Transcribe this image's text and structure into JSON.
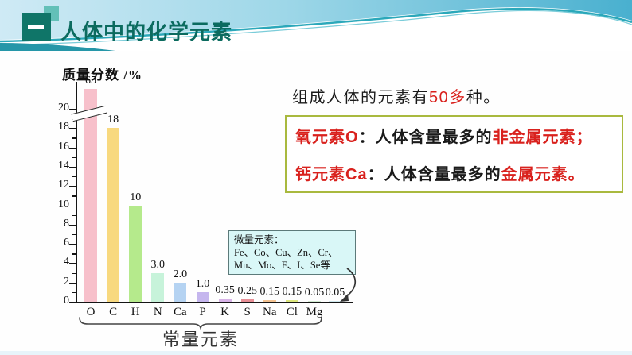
{
  "header": {
    "title": "人体中的化学元素"
  },
  "intro": {
    "pre": "组成人体的元素有",
    "highlight": "50多",
    "post": "种。"
  },
  "info_box": {
    "line1": {
      "label": "氧元素O",
      "colon": "：",
      "mid": "人体含量最多的",
      "highlight": "非金属元素；"
    },
    "line2": {
      "label": "钙元素Ca",
      "colon": "：",
      "mid": "人体含量最多的",
      "highlight": "金属元素。"
    }
  },
  "trace_box": {
    "title": "微量元素：",
    "line1": "Fe、Co、Cu、Zn、Cr、",
    "line2": "Mn、Mo、F、I、Se等"
  },
  "chart_data": {
    "type": "bar",
    "title": "",
    "ylabel": "质量分数 /%",
    "xlabel": "",
    "categories": [
      "O",
      "C",
      "H",
      "N",
      "Ca",
      "P",
      "K",
      "S",
      "Na",
      "Cl",
      "Mg",
      ""
    ],
    "values": [
      65,
      18,
      10,
      3.0,
      2.0,
      1.0,
      0.35,
      0.25,
      0.15,
      0.15,
      0.05,
      0.05
    ],
    "value_labels": [
      "65",
      "18",
      "10",
      "3.0",
      "2.0",
      "1.0",
      "0.35",
      "0.25",
      "0.15",
      "0.15",
      "0.05",
      "0.05"
    ],
    "bar_colors": [
      "#f7c0cb",
      "#f8d97f",
      "#b5ea8c",
      "#c7f3da",
      "#b5d3f2",
      "#c5b6ee",
      "#d8b3e8",
      "#e88f96",
      "#f3c291",
      "#dce67c",
      "#d2ecd2",
      "#cfe8ee"
    ],
    "yticks": [
      0,
      2,
      4,
      6,
      8,
      10,
      12,
      14,
      16,
      18,
      20
    ],
    "ylim": [
      0,
      21
    ],
    "axis_break": true,
    "axis_break_note": "O bar truncated at axis break; true value is 65",
    "group_label": "常量元素",
    "grid": false,
    "legend_position": "none"
  },
  "colors": {
    "accent_red": "#d9211d",
    "title_teal": "#0b6b5f",
    "info_box_border": "#a9b93e",
    "callout_bg": "#d9f7f7",
    "header_line_teal": "#2ba8ba"
  }
}
